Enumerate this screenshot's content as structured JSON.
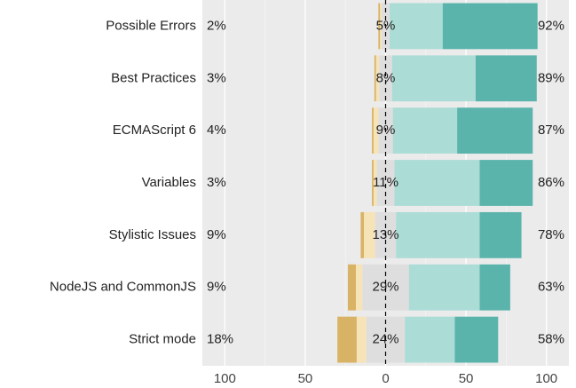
{
  "chart_data": {
    "type": "diverging_bar",
    "categories": [
      "Possible Errors",
      "Best Practices",
      "ECMAScript 6",
      "Variables",
      "Stylistic Issues",
      "NodeJS and CommonJS",
      "Strict mode"
    ],
    "series": [
      {
        "color": "#d8b365",
        "side": "low",
        "values": [
          1,
          1,
          1,
          1,
          2,
          5,
          12
        ]
      },
      {
        "color": "#f6e3b8",
        "side": "low",
        "values": [
          1,
          2,
          3,
          2,
          7,
          4,
          6
        ]
      },
      {
        "color": "#dedede",
        "side": "neutral",
        "values": [
          5,
          8,
          9,
          11,
          13,
          29,
          24
        ]
      },
      {
        "color": "#abdcd5",
        "side": "high",
        "values": [
          33,
          52,
          40,
          53,
          52,
          44,
          31
        ]
      },
      {
        "color": "#5ab4ac",
        "side": "high",
        "values": [
          59,
          38,
          47,
          33,
          26,
          19,
          27
        ]
      }
    ],
    "low_labels": [
      "2%",
      "3%",
      "4%",
      "3%",
      "9%",
      "9%",
      "18%"
    ],
    "neutral_labels": [
      "5%",
      "8%",
      "9%",
      "11%",
      "13%",
      "29%",
      "24%"
    ],
    "high_labels": [
      "92%",
      "89%",
      "87%",
      "86%",
      "78%",
      "63%",
      "58%"
    ],
    "xlim": [
      -114,
      114
    ],
    "xticks": [
      {
        "value": -100,
        "label": "100"
      },
      {
        "value": -50,
        "label": "50"
      },
      0,
      50,
      {
        "value": 100,
        "label": "100"
      }
    ],
    "minor_xticks": [
      -75,
      -25,
      25,
      75
    ],
    "grid": true
  }
}
